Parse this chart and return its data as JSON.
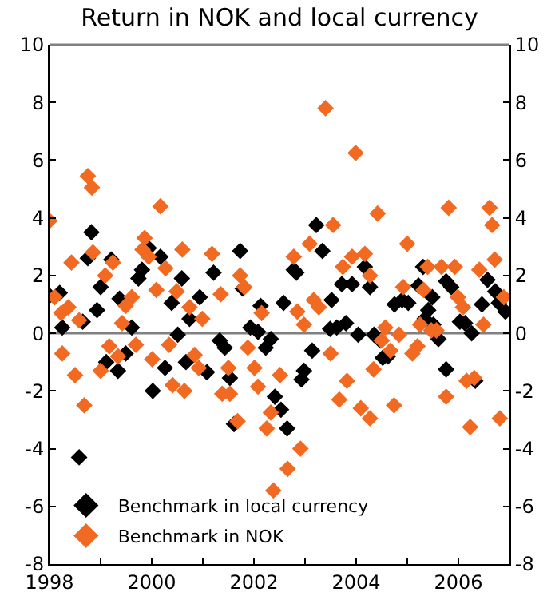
{
  "chart_data": {
    "type": "scatter",
    "title": "Return in NOK and local currency",
    "marker": "diamond",
    "legend": "bottom left",
    "grid": false,
    "xlim": [
      1998,
      2007
    ],
    "xticks": [
      1998,
      {
        "value": 1999,
        "label": null
      },
      2000,
      {
        "value": 2001,
        "label": null
      },
      2002,
      {
        "value": 2003,
        "label": null
      },
      2004,
      {
        "value": 2005,
        "label": null
      },
      2006
    ],
    "ylim": [
      -8,
      10
    ],
    "yticks": [
      -8,
      -6,
      -4,
      -2,
      0,
      2,
      4,
      6,
      8,
      10
    ],
    "y2lim": [
      -8,
      10
    ],
    "y2ticks": [
      -8,
      -6,
      -4,
      -2,
      0,
      2,
      4,
      6,
      8,
      10
    ],
    "ref_lines": [
      {
        "axis": "y",
        "value": 0,
        "label": null,
        "color": "#808080"
      }
    ],
    "series": [
      {
        "name": "Benchmark in local currency",
        "color": "#000000",
        "x": [
          1998.0,
          1998.2,
          1998.25,
          1998.65,
          1998.58,
          1998.75,
          1998.82,
          1998.93,
          1999.0,
          1999.11,
          1999.21,
          1999.34,
          1999.37,
          1999.49,
          1999.61,
          1999.74,
          1999.81,
          1999.94,
          2000.02,
          2000.17,
          2000.26,
          2000.39,
          2000.51,
          2000.59,
          2000.67,
          2000.74,
          2000.94,
          2001.08,
          2001.21,
          2001.33,
          2001.43,
          2001.53,
          2001.61,
          2001.73,
          2001.78,
          2001.93,
          2002.08,
          2002.13,
          2002.23,
          2002.33,
          2002.41,
          2002.53,
          2002.58,
          2002.65,
          2002.78,
          2002.83,
          2002.93,
          2002.98,
          2003.14,
          2003.22,
          2003.34,
          2003.49,
          2003.52,
          2003.62,
          2003.72,
          2003.8,
          2003.92,
          2004.04,
          2004.17,
          2004.27,
          2004.35,
          2004.47,
          2004.52,
          2004.62,
          2004.75,
          2004.9,
          2005.02,
          2005.22,
          2005.34,
          2005.41,
          2005.51,
          2005.61,
          2005.31,
          2005.49,
          2005.76,
          2005.76,
          2005.86,
          2006.03,
          2006.13,
          2006.26,
          2006.33,
          2006.46,
          2006.57,
          2006.72,
          2006.79,
          2006.92
        ],
        "values": [
          1.3,
          1.4,
          0.2,
          0.4,
          -4.3,
          2.6,
          3.5,
          0.8,
          1.6,
          -1.0,
          2.55,
          -1.3,
          1.2,
          -0.7,
          0.2,
          1.9,
          2.2,
          2.95,
          -2.0,
          2.65,
          -1.2,
          1.05,
          -0.05,
          1.9,
          -1.0,
          0.5,
          1.25,
          -1.35,
          2.1,
          -0.25,
          -0.5,
          -1.55,
          -3.15,
          2.85,
          1.55,
          0.2,
          0.05,
          0.95,
          -0.5,
          -0.2,
          -2.2,
          -2.65,
          1.05,
          -3.3,
          2.2,
          2.1,
          -1.6,
          -1.3,
          -0.6,
          3.75,
          2.85,
          0.15,
          1.15,
          0.2,
          1.7,
          0.35,
          1.7,
          -0.05,
          2.3,
          1.6,
          -0.05,
          -0.25,
          -0.85,
          -0.8,
          1.0,
          1.15,
          1.05,
          1.65,
          0.5,
          0.8,
          0.3,
          -0.2,
          2.3,
          1.25,
          -1.25,
          1.8,
          1.6,
          0.4,
          0.35,
          0.0,
          -1.65,
          1.0,
          1.85,
          1.45,
          1.05,
          0.75
        ]
      },
      {
        "name": "Benchmark in NOK",
        "color": "#f26a21",
        "x": [
          1998.0,
          1998.1,
          1998.23,
          1998.25,
          1998.37,
          1998.43,
          1998.5,
          1998.58,
          1998.68,
          1998.75,
          1998.83,
          1998.85,
          1999.0,
          1999.09,
          1999.17,
          1999.24,
          1999.34,
          1999.42,
          1999.49,
          1999.61,
          1999.69,
          1999.82,
          1999.86,
          1999.94,
          2000.01,
          2000.09,
          2000.17,
          2000.27,
          2000.34,
          2000.41,
          2000.49,
          2000.6,
          2000.64,
          2000.74,
          2000.84,
          2000.92,
          2000.99,
          2001.18,
          2001.35,
          2001.38,
          2001.5,
          2001.53,
          2001.68,
          2001.73,
          2001.81,
          2001.88,
          2002.01,
          2002.08,
          2002.15,
          2002.25,
          2002.33,
          2002.38,
          2002.51,
          2002.66,
          2002.78,
          2002.85,
          2002.91,
          2002.98,
          2003.09,
          2003.17,
          2003.27,
          2003.4,
          2003.5,
          2003.55,
          2003.67,
          2003.74,
          2003.82,
          2003.92,
          2003.99,
          2004.09,
          2004.17,
          2004.27,
          2004.27,
          2004.34,
          2004.42,
          2004.5,
          2004.57,
          2004.67,
          2004.74,
          2004.84,
          2004.92,
          2005.0,
          2005.1,
          2005.2,
          2005.25,
          2005.32,
          2005.4,
          2005.47,
          2005.57,
          2005.67,
          2005.76,
          2005.81,
          2005.93,
          2005.99,
          2006.09,
          2006.16,
          2006.23,
          2006.31,
          2006.41,
          2006.49,
          2006.61,
          2006.66,
          2006.71,
          2006.81,
          2006.89
        ],
        "values": [
          3.9,
          1.25,
          0.7,
          -0.7,
          0.9,
          2.45,
          -1.45,
          0.45,
          -2.5,
          5.45,
          5.05,
          2.8,
          -1.3,
          2.0,
          -0.45,
          2.45,
          -0.8,
          0.35,
          0.95,
          1.25,
          -0.4,
          2.9,
          3.3,
          2.65,
          -0.9,
          1.5,
          4.4,
          2.25,
          -0.4,
          -1.8,
          1.45,
          2.9,
          -2.0,
          0.9,
          -0.75,
          -1.2,
          0.5,
          2.75,
          1.35,
          -2.1,
          -1.2,
          -2.1,
          -3.05,
          2.0,
          1.6,
          -0.5,
          -1.2,
          -1.85,
          0.7,
          -3.3,
          -2.75,
          -5.45,
          -1.45,
          -4.7,
          2.65,
          0.75,
          -4.0,
          0.3,
          3.1,
          1.15,
          0.9,
          7.8,
          -0.7,
          3.75,
          -2.3,
          2.3,
          -1.65,
          2.65,
          6.25,
          -2.6,
          2.75,
          2.0,
          -2.95,
          -1.25,
          4.15,
          -0.25,
          0.2,
          -0.6,
          -2.5,
          -0.05,
          1.6,
          3.1,
          -0.7,
          -0.45,
          0.3,
          1.5,
          2.3,
          0.1,
          0.1,
          2.3,
          -2.2,
          4.35,
          2.3,
          1.25,
          0.9,
          -1.65,
          -3.25,
          -1.55,
          2.2,
          0.3,
          4.35,
          3.75,
          2.55,
          -2.95,
          1.25
        ]
      }
    ]
  }
}
